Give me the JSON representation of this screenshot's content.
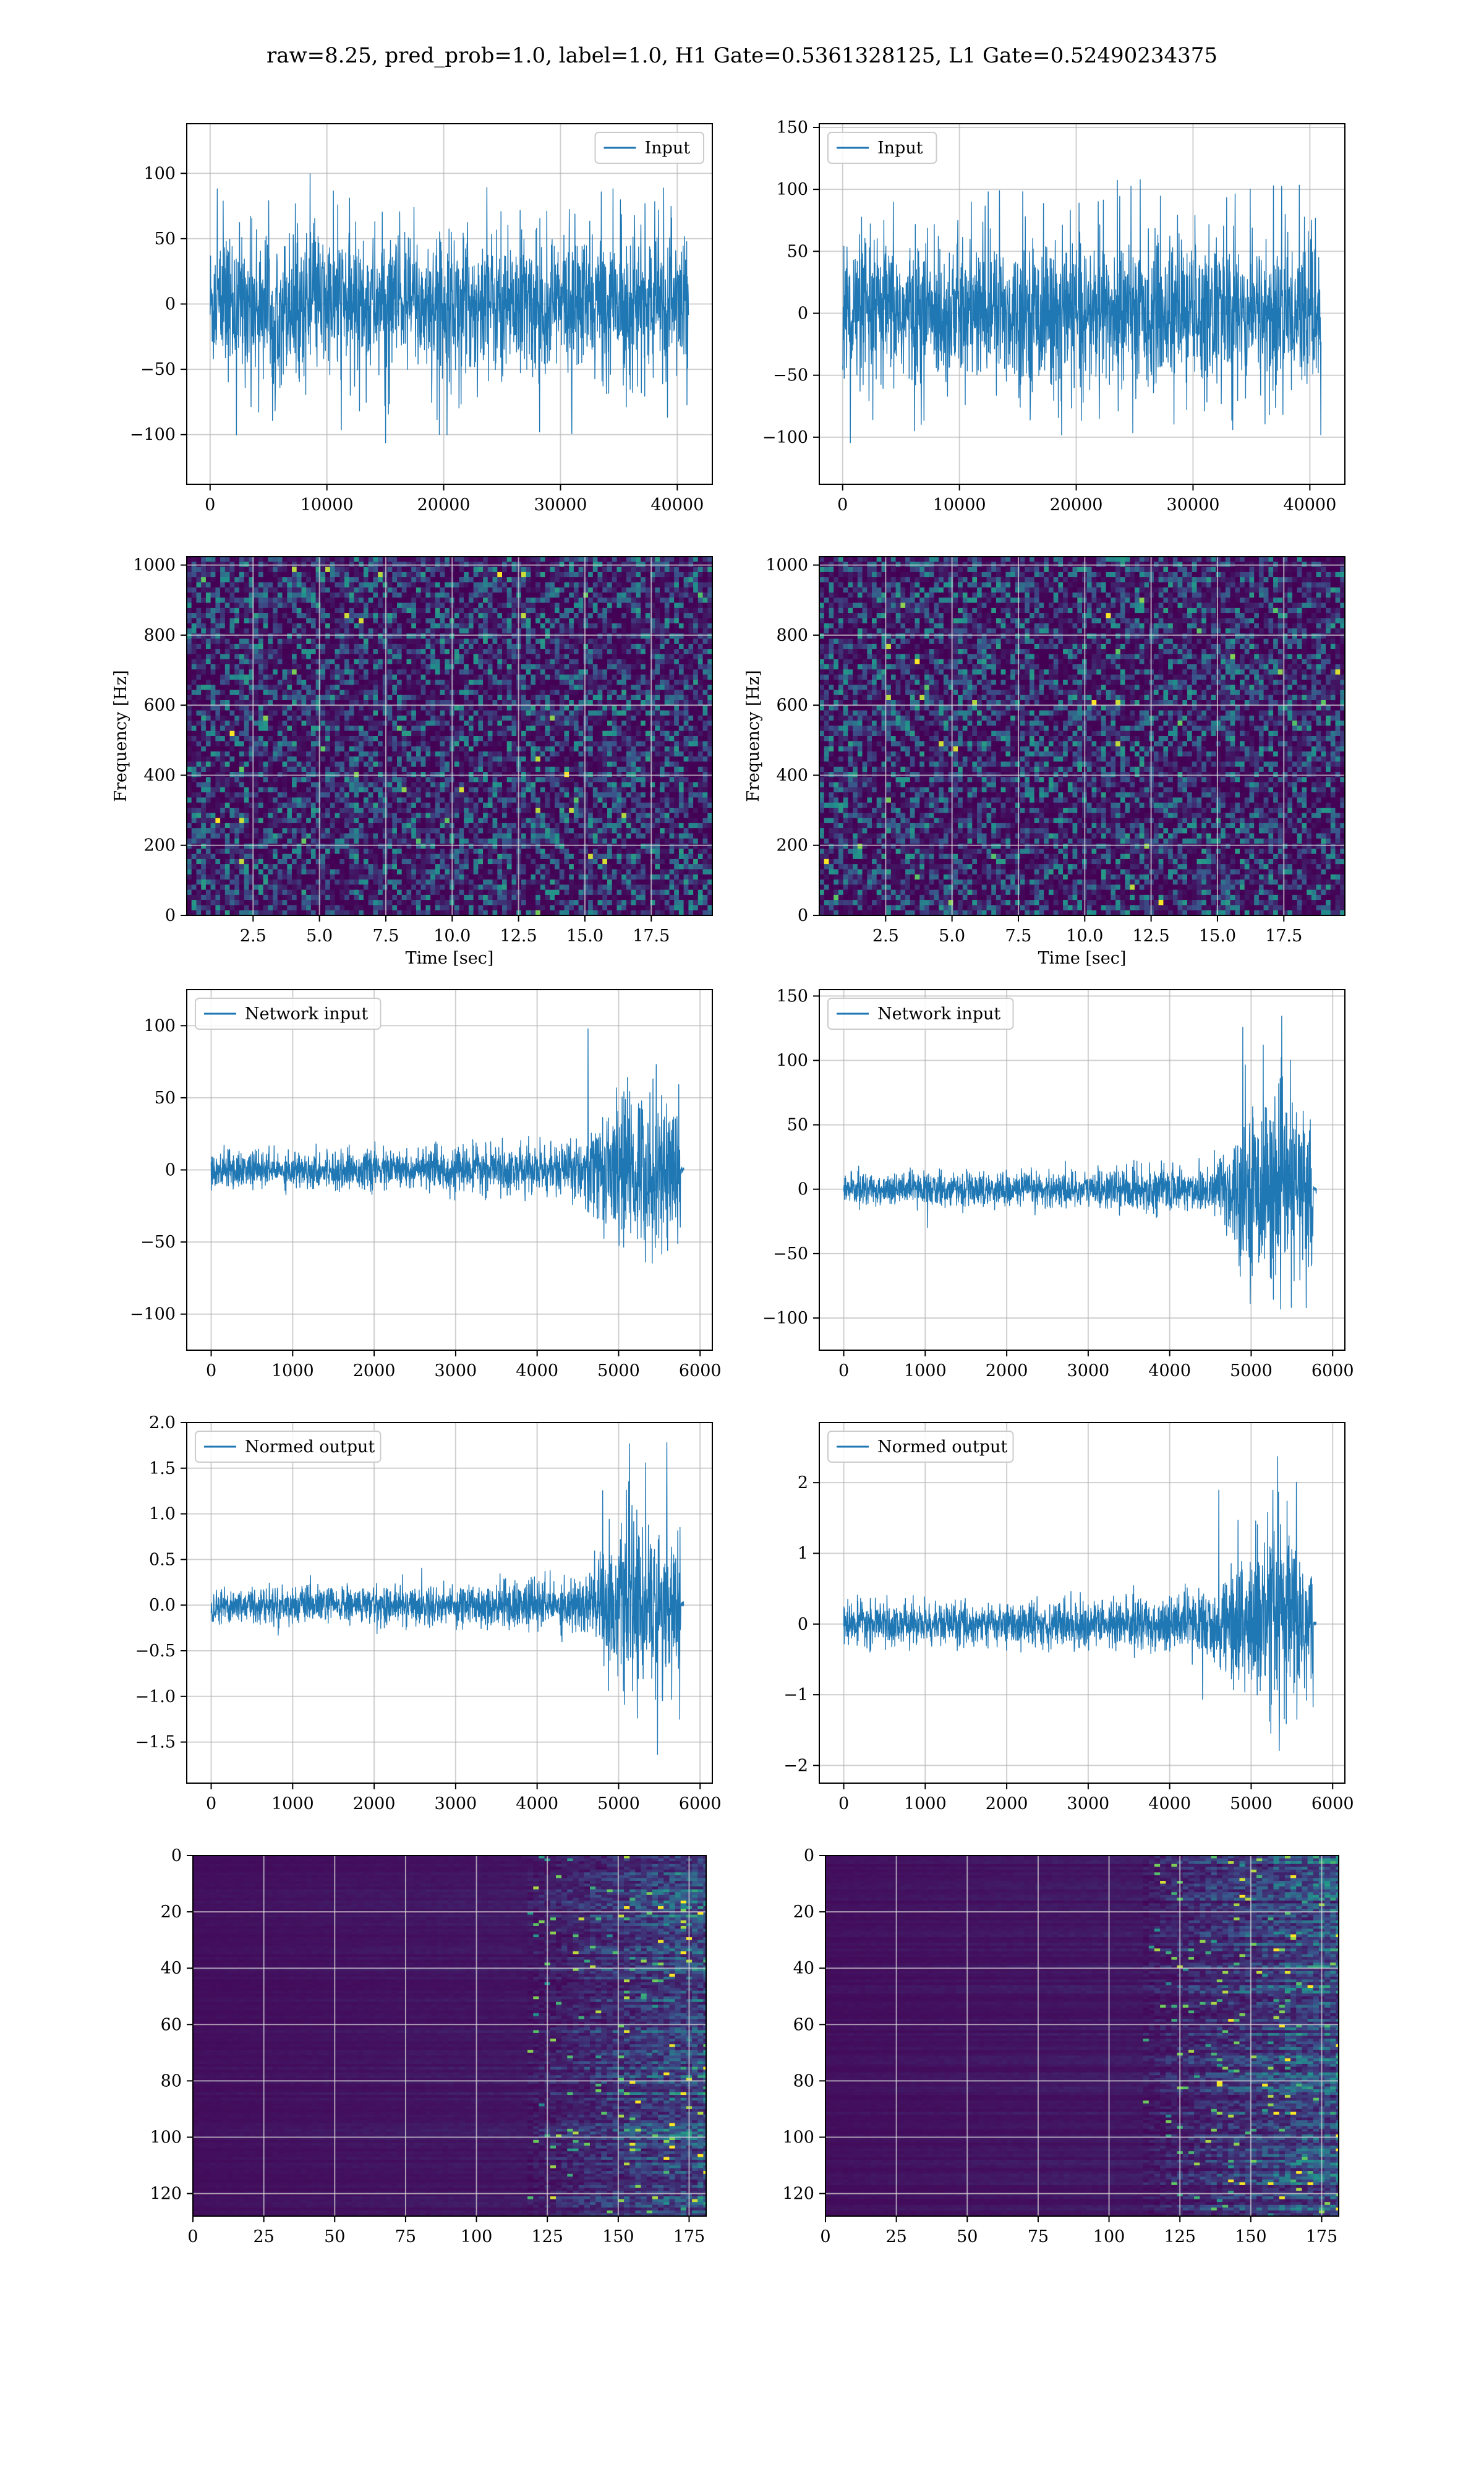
{
  "figure": {
    "title": "raw=8.25, pred_prob=1.0, label=1.0, H1 Gate=0.5361328125, L1 Gate=0.52490234375"
  },
  "colors": {
    "line": "#1f77b4",
    "grid": "#b0b0b0",
    "viridis_low": "#440154",
    "viridis_mid": "#21918c",
    "viridis_high": "#fde725"
  },
  "chart_data": [
    {
      "id": "h1-input",
      "type": "line",
      "signal": "stationary-noise",
      "legend": "Input",
      "legend_loc": "upper right",
      "xlim": [
        -2000,
        43000
      ],
      "ylim": [
        -138,
        138
      ],
      "xticks": [
        0,
        10000,
        20000,
        30000,
        40000
      ],
      "yticks": [
        -100,
        -50,
        0,
        50,
        100
      ],
      "x": [
        0,
        40960
      ],
      "envelope": {
        "core": 48,
        "peak_max": 128,
        "peak_min": -118
      },
      "grid": true
    },
    {
      "id": "l1-input",
      "type": "line",
      "signal": "stationary-noise",
      "legend": "Input",
      "legend_loc": "upper left",
      "xlim": [
        -2000,
        43000
      ],
      "ylim": [
        -138,
        153
      ],
      "xticks": [
        0,
        10000,
        20000,
        30000,
        40000
      ],
      "yticks": [
        -100,
        -50,
        0,
        50,
        100,
        150
      ],
      "x": [
        0,
        40960
      ],
      "envelope": {
        "core": 52,
        "peak_max": 143,
        "peak_min": -124
      },
      "grid": true
    },
    {
      "id": "h1-spectrogram",
      "type": "heatmap",
      "colormap": "viridis",
      "xlabel": "Time [sec]",
      "ylabel": "Frequency [Hz]",
      "xlim": [
        0,
        19.8
      ],
      "ylim": [
        0,
        1024
      ],
      "xticks": [
        2.5,
        5.0,
        7.5,
        10.0,
        12.5,
        15.0,
        17.5
      ],
      "yticks": [
        0,
        200,
        400,
        600,
        800,
        1000
      ],
      "grid": true
    },
    {
      "id": "l1-spectrogram",
      "type": "heatmap",
      "colormap": "viridis",
      "xlabel": "Time [sec]",
      "ylabel": "Frequency [Hz]",
      "xlim": [
        0,
        19.8
      ],
      "ylim": [
        0,
        1024
      ],
      "xticks": [
        2.5,
        5.0,
        7.5,
        10.0,
        12.5,
        15.0,
        17.5
      ],
      "yticks": [
        0,
        200,
        400,
        600,
        800,
        1000
      ],
      "grid": true
    },
    {
      "id": "h1-network-input",
      "type": "line",
      "signal": "chirp-burst",
      "legend": "Network input",
      "legend_loc": "upper left",
      "xlim": [
        -300,
        6150
      ],
      "ylim": [
        -125,
        125
      ],
      "xticks": [
        0,
        1000,
        2000,
        3000,
        4000,
        5000,
        6000
      ],
      "yticks": [
        -100,
        -50,
        0,
        50,
        100
      ],
      "x": [
        0,
        5800
      ],
      "envelope": {
        "base": 14,
        "burst_start": 4500,
        "burst_end": 5720,
        "burst_peak": 112,
        "burst_min": -112
      },
      "grid": true
    },
    {
      "id": "l1-network-input",
      "type": "line",
      "signal": "chirp-burst",
      "legend": "Network input",
      "legend_loc": "upper left",
      "xlim": [
        -300,
        6150
      ],
      "ylim": [
        -125,
        155
      ],
      "xticks": [
        0,
        1000,
        2000,
        3000,
        4000,
        5000,
        6000
      ],
      "yticks": [
        -100,
        -50,
        0,
        50,
        100,
        150
      ],
      "x": [
        0,
        5800
      ],
      "envelope": {
        "base": 14,
        "burst_start": 4500,
        "burst_end": 5720,
        "burst_peak": 142,
        "burst_min": -112
      },
      "grid": true
    },
    {
      "id": "h1-normed-output",
      "type": "line",
      "signal": "chirp-burst",
      "legend": "Normed output",
      "legend_loc": "upper left",
      "xlim": [
        -300,
        6150
      ],
      "ylim": [
        -1.95,
        2.0
      ],
      "xticks": [
        0,
        1000,
        2000,
        3000,
        4000,
        5000,
        6000
      ],
      "yticks": [
        -1.5,
        -1.0,
        -0.5,
        0.0,
        0.5,
        1.0,
        1.5,
        2.0
      ],
      "x": [
        0,
        5800
      ],
      "envelope": {
        "base": 0.22,
        "burst_start": 4500,
        "burst_end": 5720,
        "burst_peak": 1.82,
        "burst_min": -1.8
      },
      "grid": true
    },
    {
      "id": "l1-normed-output",
      "type": "line",
      "signal": "chirp-burst",
      "legend": "Normed output",
      "legend_loc": "upper left",
      "xlim": [
        -300,
        6150
      ],
      "ylim": [
        -2.25,
        2.85
      ],
      "xticks": [
        0,
        1000,
        2000,
        3000,
        4000,
        5000,
        6000
      ],
      "yticks": [
        -2,
        -1,
        0,
        1,
        2
      ],
      "x": [
        0,
        5800
      ],
      "envelope": {
        "base": 0.33,
        "burst_start": 4500,
        "burst_end": 5720,
        "burst_peak": 2.7,
        "burst_min": -2.15
      },
      "grid": true
    },
    {
      "id": "h1-network-image",
      "type": "heatmap",
      "colormap": "viridis",
      "xlim": [
        0,
        181
      ],
      "ylim": [
        128,
        0
      ],
      "xticks": [
        0,
        25,
        50,
        75,
        100,
        125,
        150,
        175
      ],
      "yticks": [
        0,
        20,
        40,
        60,
        80,
        100,
        120
      ],
      "activity_onset": 118,
      "grid": true
    },
    {
      "id": "l1-network-image",
      "type": "heatmap",
      "colormap": "viridis",
      "xlim": [
        0,
        181
      ],
      "ylim": [
        128,
        0
      ],
      "xticks": [
        0,
        25,
        50,
        75,
        100,
        125,
        150,
        175
      ],
      "yticks": [
        0,
        20,
        40,
        60,
        80,
        100,
        120
      ],
      "activity_onset": 112,
      "grid": true
    }
  ]
}
